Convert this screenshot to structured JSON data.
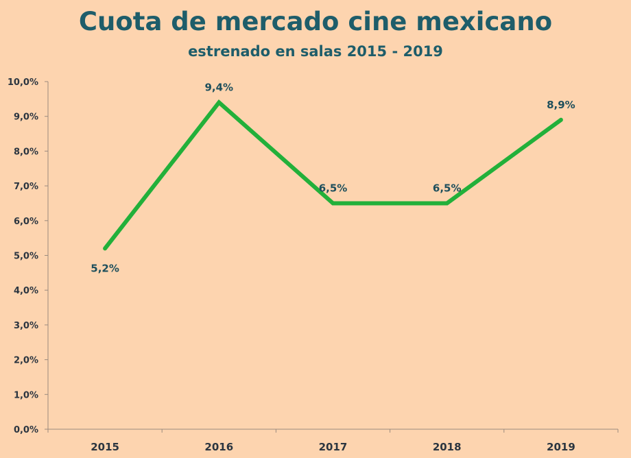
{
  "chart_data": {
    "type": "line",
    "title": "Cuota de mercado cine mexicano",
    "subtitle": "estrenado en salas 2015 - 2019",
    "xlabel": "",
    "ylabel": "",
    "categories": [
      "2015",
      "2016",
      "2017",
      "2018",
      "2019"
    ],
    "series": [
      {
        "name": "Cuota de mercado",
        "values": [
          5.2,
          9.4,
          6.5,
          6.5,
          8.9
        ],
        "color": "#22B03A"
      }
    ],
    "data_labels": [
      "5,2%",
      "9,4%",
      "6,5%",
      "6,5%",
      "8,9%"
    ],
    "ylim": [
      0,
      10
    ],
    "yticks": [
      "0,0%",
      "1,0%",
      "2,0%",
      "3,0%",
      "4,0%",
      "5,0%",
      "6,0%",
      "7,0%",
      "8,0%",
      "9,0%",
      "10,0%"
    ],
    "grid": false,
    "legend": "none"
  }
}
